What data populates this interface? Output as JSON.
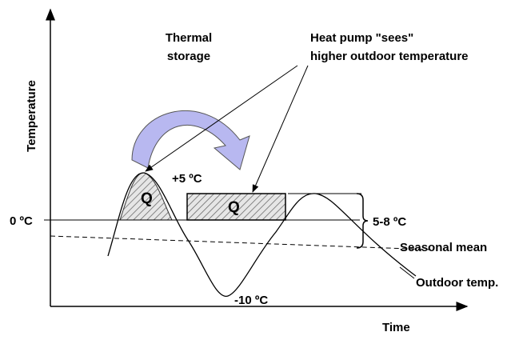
{
  "axes": {
    "y_label": "Temperature",
    "x_label": "Time"
  },
  "labels": {
    "thermal_line1": "Thermal",
    "thermal_line2": "storage",
    "heatpump_line1": "Heat pump \"sees\"",
    "heatpump_line2": "higher outdoor temperature",
    "plus5": "+5 ºC",
    "zero": "0 ºC",
    "q1": "Q",
    "q2": "Q",
    "range": "5-8 ºC",
    "seasonal": "Seasonal mean",
    "outdoor": "Outdoor temp.",
    "minus10": "-10 ºC"
  }
}
